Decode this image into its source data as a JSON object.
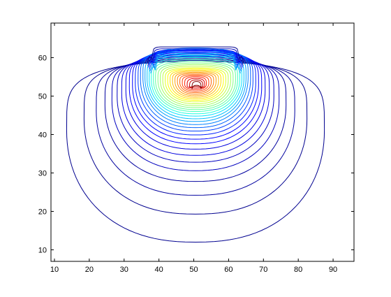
{
  "chart_data": {
    "type": "contour",
    "title": "",
    "xlabel": "",
    "ylabel": "",
    "xlim": [
      9,
      96
    ],
    "ylim": [
      7,
      69
    ],
    "grid": false,
    "legend": "none",
    "colormap": "jet",
    "x_ticks": [
      10,
      20,
      30,
      40,
      50,
      60,
      70,
      80,
      90
    ],
    "y_ticks": [
      10,
      20,
      30,
      40,
      50,
      60
    ],
    "peak": {
      "x": 51,
      "y": 53
    },
    "levels": [
      {
        "index": 0,
        "color": "#00008f"
      },
      {
        "index": 1,
        "color": "#00009f"
      },
      {
        "index": 2,
        "color": "#0000bf"
      },
      {
        "index": 3,
        "color": "#0000df"
      },
      {
        "index": 4,
        "color": "#0000ff"
      },
      {
        "index": 5,
        "color": "#0020ff"
      },
      {
        "index": 6,
        "color": "#0040ff"
      },
      {
        "index": 7,
        "color": "#0060ff"
      },
      {
        "index": 8,
        "color": "#0080ff"
      },
      {
        "index": 9,
        "color": "#00a0ff"
      },
      {
        "index": 10,
        "color": "#00c0ff"
      },
      {
        "index": 11,
        "color": "#00e0ff"
      },
      {
        "index": 12,
        "color": "#20ffdf"
      },
      {
        "index": 13,
        "color": "#40ffbf"
      },
      {
        "index": 14,
        "color": "#60ff9f"
      },
      {
        "index": 15,
        "color": "#80ff80"
      },
      {
        "index": 16,
        "color": "#9fff60"
      },
      {
        "index": 17,
        "color": "#bfff40"
      },
      {
        "index": 18,
        "color": "#dfff20"
      },
      {
        "index": 19,
        "color": "#ffff00"
      },
      {
        "index": 20,
        "color": "#ffdf00"
      },
      {
        "index": 21,
        "color": "#ffbf00"
      },
      {
        "index": 22,
        "color": "#ff9f00"
      },
      {
        "index": 23,
        "color": "#ff8000"
      },
      {
        "index": 24,
        "color": "#ff6000"
      },
      {
        "index": 25,
        "color": "#ff4000"
      },
      {
        "index": 26,
        "color": "#ff2000"
      },
      {
        "index": 27,
        "color": "#df0000"
      },
      {
        "index": 28,
        "color": "#bf0000"
      },
      {
        "index": 29,
        "color": "#9f0000"
      },
      {
        "index": 30,
        "color": "#800000"
      }
    ],
    "contours": [
      {
        "x_left": 13.5,
        "x_right": 87.5,
        "y_bottom": 12,
        "y_top": 59,
        "level": 0
      },
      {
        "x_left": 18.5,
        "x_right": 82.5,
        "y_bottom": 19.3,
        "y_top": 59.3,
        "level": 0
      },
      {
        "x_left": 22,
        "x_right": 79,
        "y_bottom": 24.2,
        "y_top": 59.6,
        "level": 1
      },
      {
        "x_left": 24.5,
        "x_right": 76.5,
        "y_bottom": 27.8,
        "y_top": 59.9,
        "level": 1
      },
      {
        "x_left": 26.5,
        "x_right": 74.5,
        "y_bottom": 30.6,
        "y_top": 60.2,
        "level": 2
      },
      {
        "x_left": 28,
        "x_right": 73,
        "y_bottom": 32.8,
        "y_top": 60.5,
        "level": 2
      },
      {
        "x_left": 29.3,
        "x_right": 71.7,
        "y_bottom": 34.6,
        "y_top": 60.8,
        "level": 3
      },
      {
        "x_left": 30.5,
        "x_right": 70.5,
        "y_bottom": 36.2,
        "y_top": 61.1,
        "level": 3
      },
      {
        "x_left": 31.5,
        "x_right": 69.5,
        "y_bottom": 37.6,
        "y_top": 61.4,
        "level": 4
      },
      {
        "x_left": 32.4,
        "x_right": 68.6,
        "y_bottom": 38.8,
        "y_top": 61.7,
        "level": 4
      },
      {
        "x_left": 33.2,
        "x_right": 67.8,
        "y_bottom": 39.9,
        "y_top": 61.9,
        "level": 5
      },
      {
        "x_left": 34,
        "x_right": 67,
        "y_bottom": 40.9,
        "y_top": 62.1,
        "level": 6
      },
      {
        "x_left": 34.7,
        "x_right": 66.3,
        "y_bottom": 41.8,
        "y_top": 62.3,
        "level": 7
      },
      {
        "x_left": 35.4,
        "x_right": 65.6,
        "y_bottom": 42.6,
        "y_top": 62.5,
        "level": 8
      },
      {
        "x_left": 36,
        "x_right": 65,
        "y_bottom": 43.4,
        "y_top": 61.8,
        "level": 9
      },
      {
        "x_left": 36.6,
        "x_right": 64.4,
        "y_bottom": 44.1,
        "y_top": 61.2,
        "level": 10
      },
      {
        "x_left": 37.2,
        "x_right": 63.8,
        "y_bottom": 44.8,
        "y_top": 60.6,
        "level": 11
      },
      {
        "x_left": 37.8,
        "x_right": 63.2,
        "y_bottom": 45.4,
        "y_top": 60,
        "level": 12
      },
      {
        "x_left": 38.4,
        "x_right": 62.6,
        "y_bottom": 46,
        "y_top": 59.5,
        "level": 13
      },
      {
        "x_left": 39,
        "x_right": 62,
        "y_bottom": 46.5,
        "y_top": 59,
        "level": 14
      },
      {
        "x_left": 39.7,
        "x_right": 61.3,
        "y_bottom": 47,
        "y_top": 58.6,
        "level": 15
      },
      {
        "x_left": 40.4,
        "x_right": 60.6,
        "y_bottom": 47.5,
        "y_top": 58.2,
        "level": 16
      },
      {
        "x_left": 41.1,
        "x_right": 59.9,
        "y_bottom": 48,
        "y_top": 57.8,
        "level": 17
      },
      {
        "x_left": 41.8,
        "x_right": 59.2,
        "y_bottom": 48.5,
        "y_top": 57.4,
        "level": 18
      },
      {
        "x_left": 42.5,
        "x_right": 58.5,
        "y_bottom": 48.9,
        "y_top": 57.1,
        "level": 19
      },
      {
        "x_left": 43.2,
        "x_right": 57.8,
        "y_bottom": 49.3,
        "y_top": 56.8,
        "level": 20
      },
      {
        "x_left": 43.9,
        "x_right": 57.1,
        "y_bottom": 49.7,
        "y_top": 56.5,
        "level": 21
      },
      {
        "x_left": 44.6,
        "x_right": 56.4,
        "y_bottom": 50.1,
        "y_top": 56.2,
        "level": 22
      },
      {
        "x_left": 45.3,
        "x_right": 55.7,
        "y_bottom": 50.5,
        "y_top": 55.9,
        "level": 23
      },
      {
        "x_left": 46,
        "x_right": 55,
        "y_bottom": 50.9,
        "y_top": 55.6,
        "level": 24
      },
      {
        "x_left": 46.7,
        "x_right": 54.3,
        "y_bottom": 51.3,
        "y_top": 55.3,
        "level": 25
      },
      {
        "x_left": 47.4,
        "x_right": 53.6,
        "y_bottom": 51.7,
        "y_top": 55,
        "level": 26
      },
      {
        "x_left": 48.1,
        "x_right": 53.1,
        "y_bottom": 52.1,
        "y_top": 54.6,
        "level": 27
      },
      {
        "x_left": 48.8,
        "x_right": 52.6,
        "y_bottom": 52.5,
        "y_top": 54.2,
        "level": 28
      },
      {
        "x_left": 49.5,
        "x_right": 52.1,
        "y_bottom": 52.8,
        "y_top": 53.8,
        "level": 30
      }
    ],
    "top_lines": [
      {
        "y": 62.8,
        "x_left": 38.5,
        "x_right": 62.5,
        "level": 0
      },
      {
        "y": 62.3,
        "x_left": 38.8,
        "x_right": 62.2,
        "level": 2
      },
      {
        "y": 61.8,
        "x_left": 39.0,
        "x_right": 62.0,
        "level": 4
      },
      {
        "y": 61.3,
        "x_left": 39.2,
        "x_right": 61.8,
        "level": 6
      },
      {
        "y": 60.8,
        "x_left": 39.4,
        "x_right": 61.6,
        "level": 8
      },
      {
        "y": 60.3,
        "x_left": 39.6,
        "x_right": 61.4,
        "level": 9
      }
    ]
  }
}
